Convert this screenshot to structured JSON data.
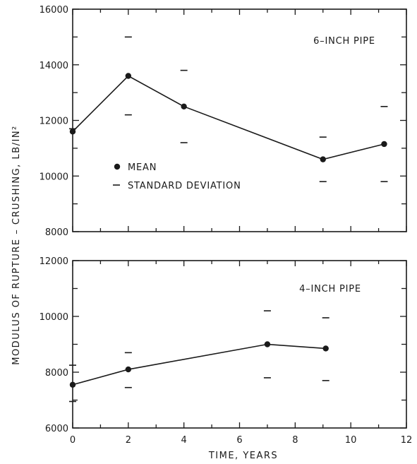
{
  "y_axis_title": "MODULUS  OF  RUPTURE – CRUSHING,  LB/IN²",
  "x_axis_title": "TIME,  YEARS",
  "legend": {
    "mean_label": "MEAN",
    "sd_label": "STANDARD  DEVIATION"
  },
  "chart_data": [
    {
      "type": "line",
      "title": "6–INCH  PIPE",
      "xlabel": "TIME,  YEARS",
      "ylabel": "MODULUS  OF  RUPTURE – CRUSHING,  LB/IN²",
      "xlim": [
        0,
        12
      ],
      "ylim": [
        8000,
        16000
      ],
      "y_ticks": [
        8000,
        10000,
        12000,
        14000,
        16000
      ],
      "y_tick_labels": [
        "8000",
        "10000",
        "12000",
        "14000",
        "16000"
      ],
      "grid": false,
      "legend_position": "center-left",
      "series": [
        {
          "name": "MEAN",
          "x": [
            0,
            2,
            4,
            9,
            11.2
          ],
          "values": [
            11600,
            13600,
            12500,
            10600,
            11150
          ]
        }
      ],
      "standard_deviation_marks": [
        {
          "x": 0,
          "values": [
            11700
          ]
        },
        {
          "x": 2,
          "values": [
            15000,
            12200
          ]
        },
        {
          "x": 4,
          "values": [
            13800,
            11200
          ]
        },
        {
          "x": 9,
          "values": [
            11400,
            9800
          ]
        },
        {
          "x": 11.2,
          "values": [
            12500,
            9800
          ]
        }
      ]
    },
    {
      "type": "line",
      "title": "4–INCH  PIPE",
      "xlabel": "TIME,  YEARS",
      "ylabel": "MODULUS  OF  RUPTURE – CRUSHING,  LB/IN²",
      "xlim": [
        0,
        12
      ],
      "ylim": [
        6000,
        12000
      ],
      "x_ticks": [
        0,
        2,
        4,
        6,
        8,
        10,
        12
      ],
      "x_tick_labels": [
        "0",
        "2",
        "4",
        "6",
        "8",
        "10",
        "12"
      ],
      "y_ticks": [
        6000,
        8000,
        10000,
        12000
      ],
      "y_tick_labels": [
        "6000",
        "8000",
        "10000",
        "12000"
      ],
      "grid": false,
      "series": [
        {
          "name": "MEAN",
          "x": [
            0,
            2,
            7,
            9.1
          ],
          "values": [
            7550,
            8100,
            9000,
            8850
          ]
        }
      ],
      "standard_deviation_marks": [
        {
          "x": 0,
          "values": [
            8250,
            6950
          ]
        },
        {
          "x": 2,
          "values": [
            8700,
            7450
          ]
        },
        {
          "x": 7,
          "values": [
            10200,
            7800
          ]
        },
        {
          "x": 9.1,
          "values": [
            9950,
            7700
          ]
        }
      ]
    }
  ]
}
